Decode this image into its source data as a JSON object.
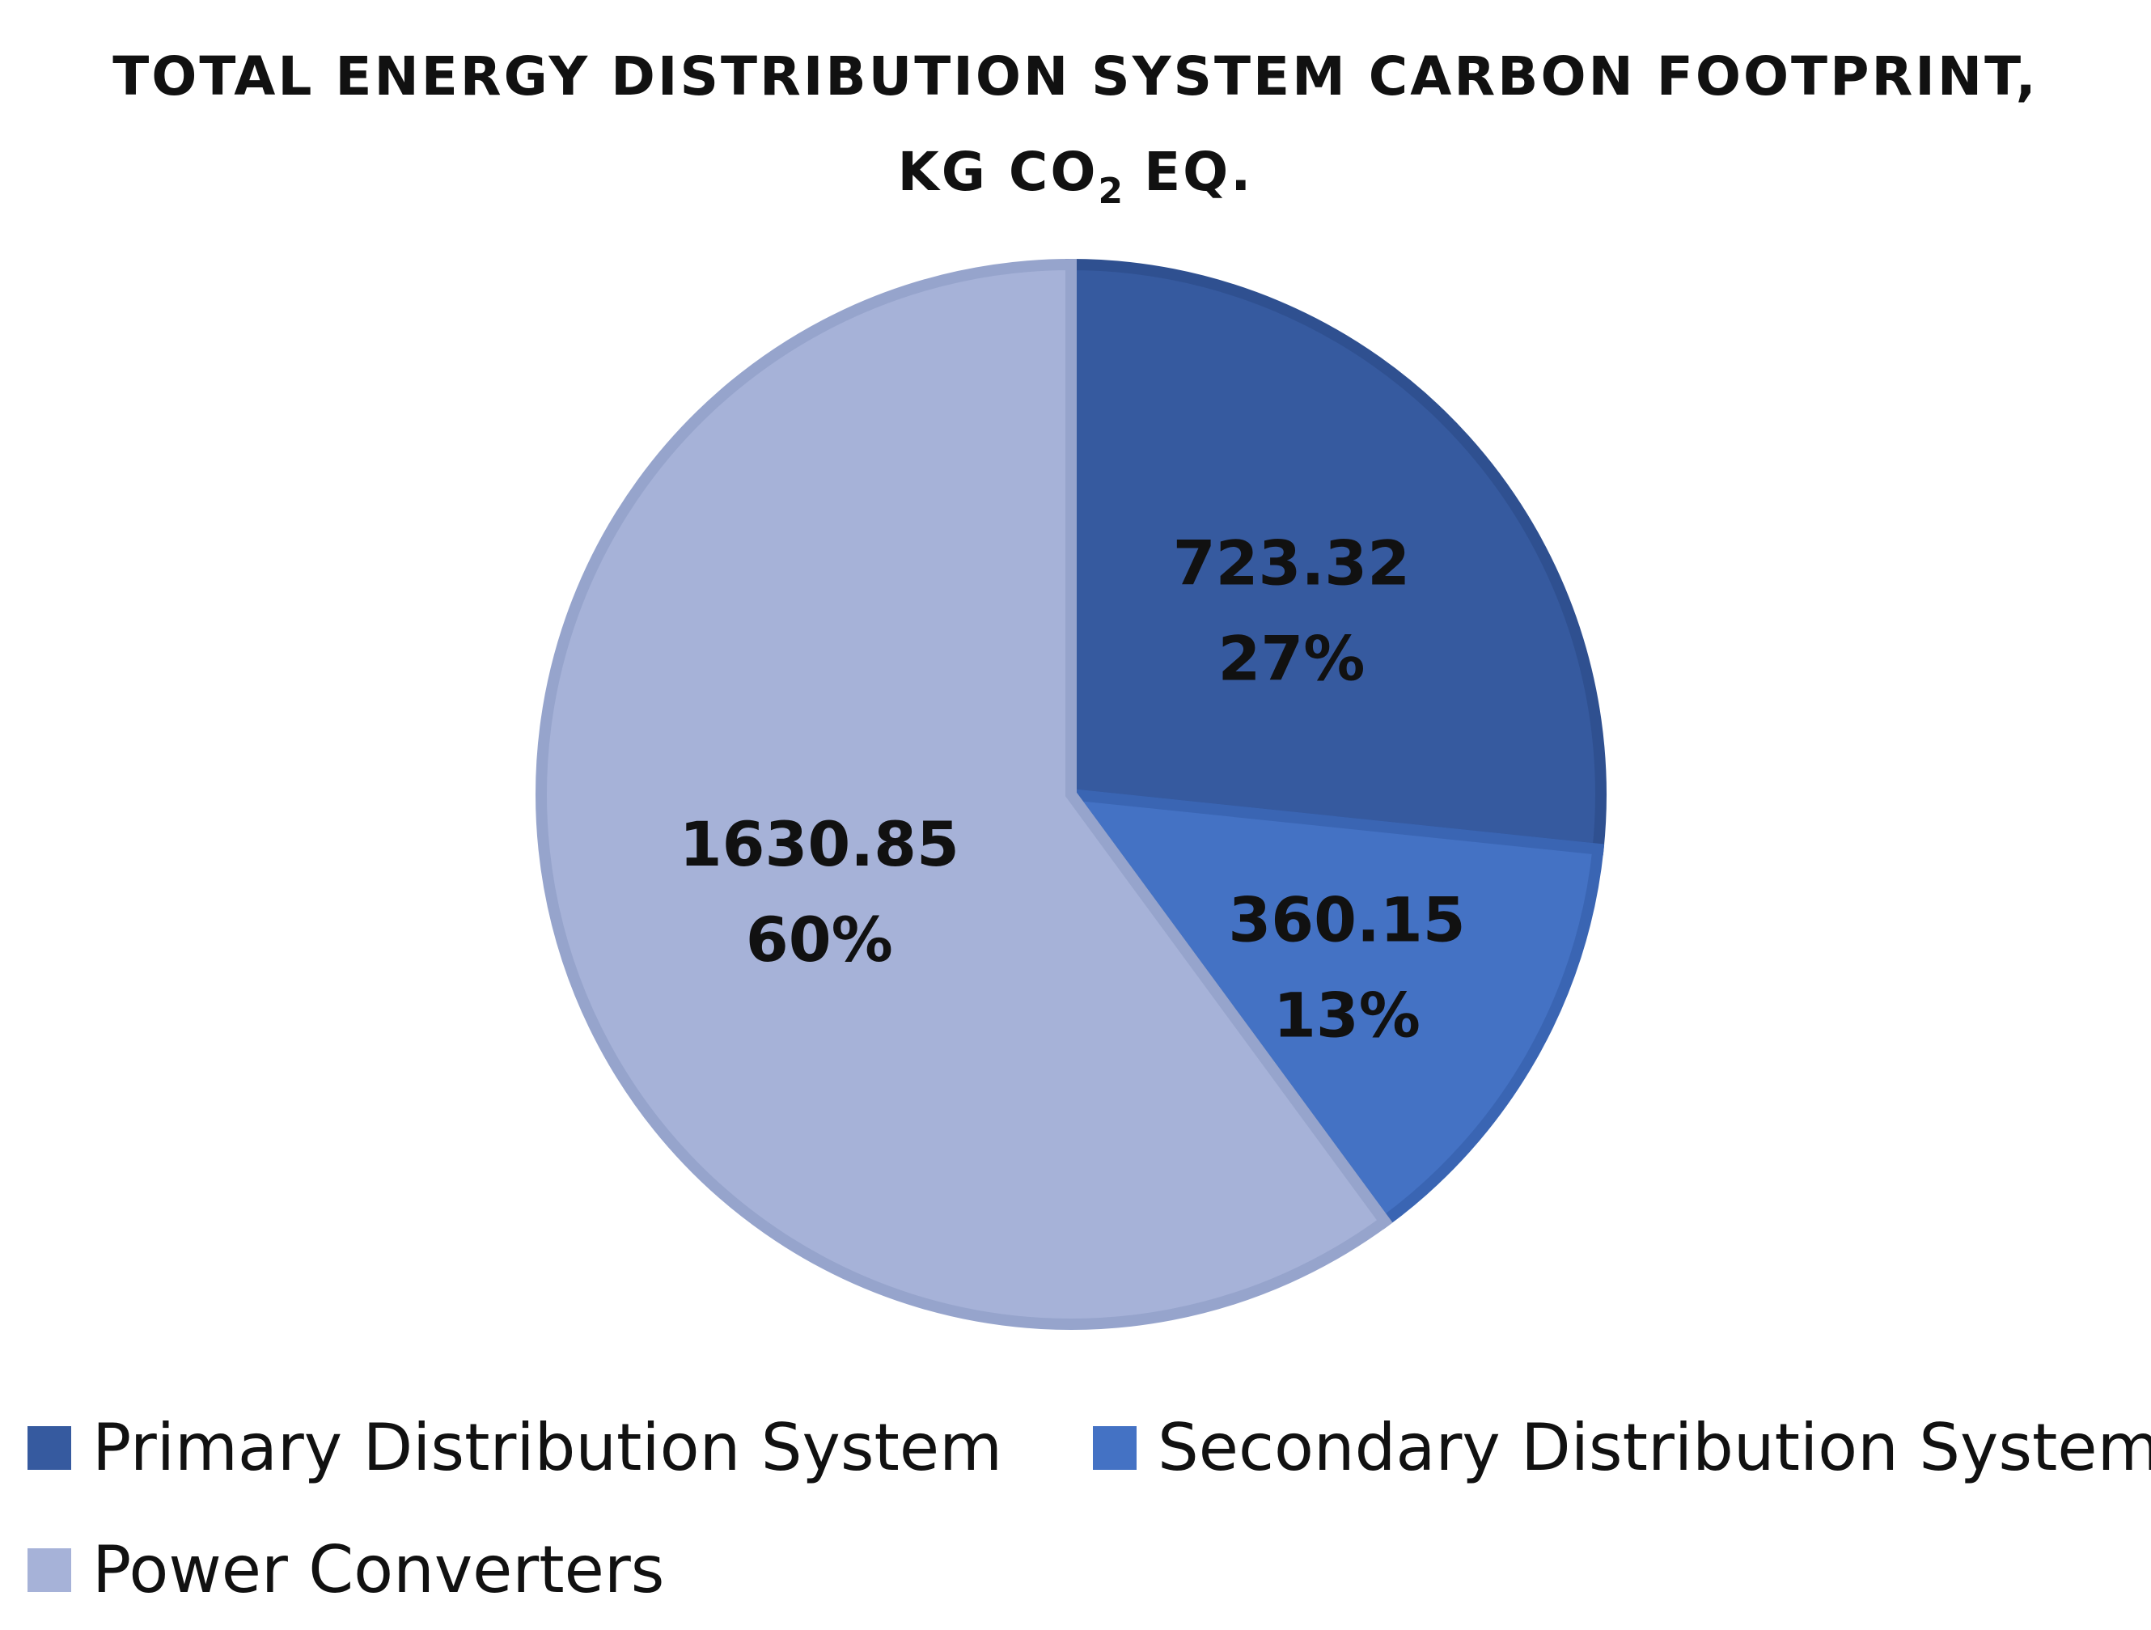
{
  "chart_data": {
    "type": "pie",
    "title_line1": "TOTAL ENERGY DISTRIBUTION SYSTEM CARBON FOOTPRINT,",
    "title_line2_pre": "KG CO",
    "title_line2_sub": "2",
    "title_line2_post": " EQ.",
    "slices": [
      {
        "name": "Primary Distribution System",
        "value": 723.32,
        "value_label": "723.32",
        "percent_label": "27%",
        "color": "#365a9f"
      },
      {
        "name": "Secondary Distribution System",
        "value": 360.15,
        "value_label": "360.15",
        "percent_label": "13%",
        "color": "#4472c4"
      },
      {
        "name": "Power Converters",
        "value": 1630.85,
        "value_label": "1630.85",
        "percent_label": "60%",
        "color": "#a6b2d8"
      }
    ],
    "legend_position": "bottom",
    "start_angle": "12 o'clock",
    "direction": "clockwise"
  }
}
